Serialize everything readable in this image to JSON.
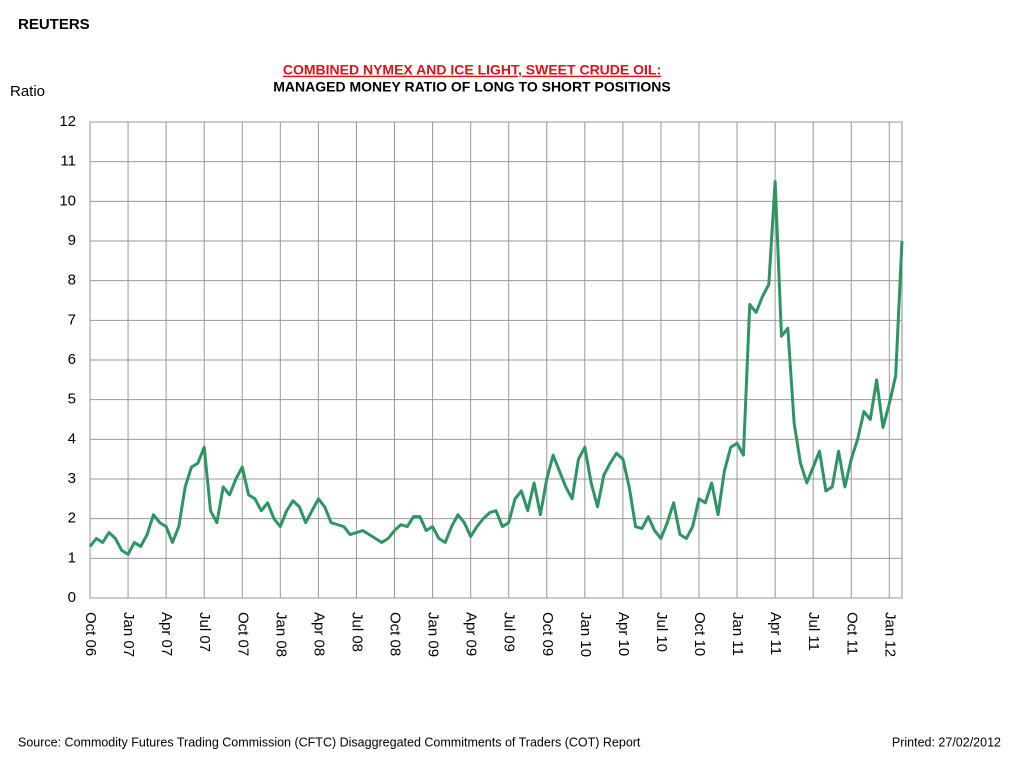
{
  "brand": "REUTERS",
  "chart_data": {
    "type": "line",
    "title": "COMBINED NYMEX AND ICE LIGHT, SWEET CRUDE OIL:",
    "subtitle": "MANAGED MONEY RATIO OF LONG TO SHORT POSITIONS",
    "y_label": "Ratio",
    "color": "#2e9463",
    "grid": true,
    "ylim": [
      0,
      12
    ],
    "yticks": [
      0,
      1,
      2,
      3,
      4,
      5,
      6,
      7,
      8,
      9,
      10,
      11,
      12
    ],
    "categories": [
      "Oct 06",
      null,
      null,
      null,
      null,
      null,
      "Jan 07",
      null,
      null,
      null,
      null,
      null,
      "Apr 07",
      null,
      null,
      null,
      null,
      null,
      "Jul 07",
      null,
      null,
      null,
      null,
      null,
      "Oct 07",
      null,
      null,
      null,
      null,
      null,
      "Jan 08",
      null,
      null,
      null,
      null,
      null,
      "Apr 08",
      null,
      null,
      null,
      null,
      null,
      "Jul 08",
      null,
      null,
      null,
      null,
      null,
      "Oct 08",
      null,
      null,
      null,
      null,
      null,
      "Jan 09",
      null,
      null,
      null,
      null,
      null,
      "Apr 09",
      null,
      null,
      null,
      null,
      null,
      "Jul 09",
      null,
      null,
      null,
      null,
      null,
      "Oct 09",
      null,
      null,
      null,
      null,
      null,
      "Jan 10",
      null,
      null,
      null,
      null,
      null,
      "Apr 10",
      null,
      null,
      null,
      null,
      null,
      "Jul 10",
      null,
      null,
      null,
      null,
      null,
      "Oct 10",
      null,
      null,
      null,
      null,
      null,
      "Jan 11",
      null,
      null,
      null,
      null,
      null,
      "Apr 11",
      null,
      null,
      null,
      null,
      null,
      "Jul 11",
      null,
      null,
      null,
      null,
      null,
      "Oct 11",
      null,
      null,
      null,
      null,
      null,
      "Jan 12",
      null,
      null
    ],
    "values": [
      1.3,
      1.5,
      1.4,
      1.65,
      1.5,
      1.2,
      1.1,
      1.4,
      1.3,
      1.6,
      2.1,
      1.9,
      1.8,
      1.4,
      1.8,
      2.8,
      3.3,
      3.4,
      3.8,
      2.2,
      1.9,
      2.8,
      2.6,
      3.0,
      3.3,
      2.6,
      2.5,
      2.2,
      2.4,
      2.0,
      1.8,
      2.2,
      2.45,
      2.3,
      1.9,
      2.2,
      2.5,
      2.3,
      1.9,
      1.85,
      1.8,
      1.6,
      1.65,
      1.7,
      1.6,
      1.5,
      1.4,
      1.5,
      1.7,
      1.85,
      1.8,
      2.05,
      2.05,
      1.7,
      1.8,
      1.5,
      1.4,
      1.8,
      2.1,
      1.9,
      1.55,
      1.8,
      2.0,
      2.15,
      2.2,
      1.8,
      1.9,
      2.5,
      2.7,
      2.2,
      2.9,
      2.1,
      3.0,
      3.6,
      3.2,
      2.8,
      2.5,
      3.5,
      3.8,
      2.9,
      2.3,
      3.1,
      3.4,
      3.65,
      3.5,
      2.8,
      1.8,
      1.75,
      2.05,
      1.7,
      1.5,
      1.9,
      2.4,
      1.6,
      1.5,
      1.8,
      2.5,
      2.4,
      2.9,
      2.1,
      3.2,
      3.8,
      3.9,
      3.6,
      7.4,
      7.2,
      7.6,
      7.9,
      10.5,
      6.6,
      6.8,
      4.4,
      3.4,
      2.9,
      3.3,
      3.7,
      2.7,
      2.8,
      3.7,
      2.8,
      3.5,
      4.0,
      4.7,
      4.5,
      5.5,
      4.3,
      4.9,
      5.6,
      9.0
    ]
  },
  "footer": {
    "source": "Source:  Commodity Futures Trading Commission (CFTC) Disaggregated Commitments of Traders (COT) Report",
    "printed": "Printed:  27/02/2012"
  }
}
